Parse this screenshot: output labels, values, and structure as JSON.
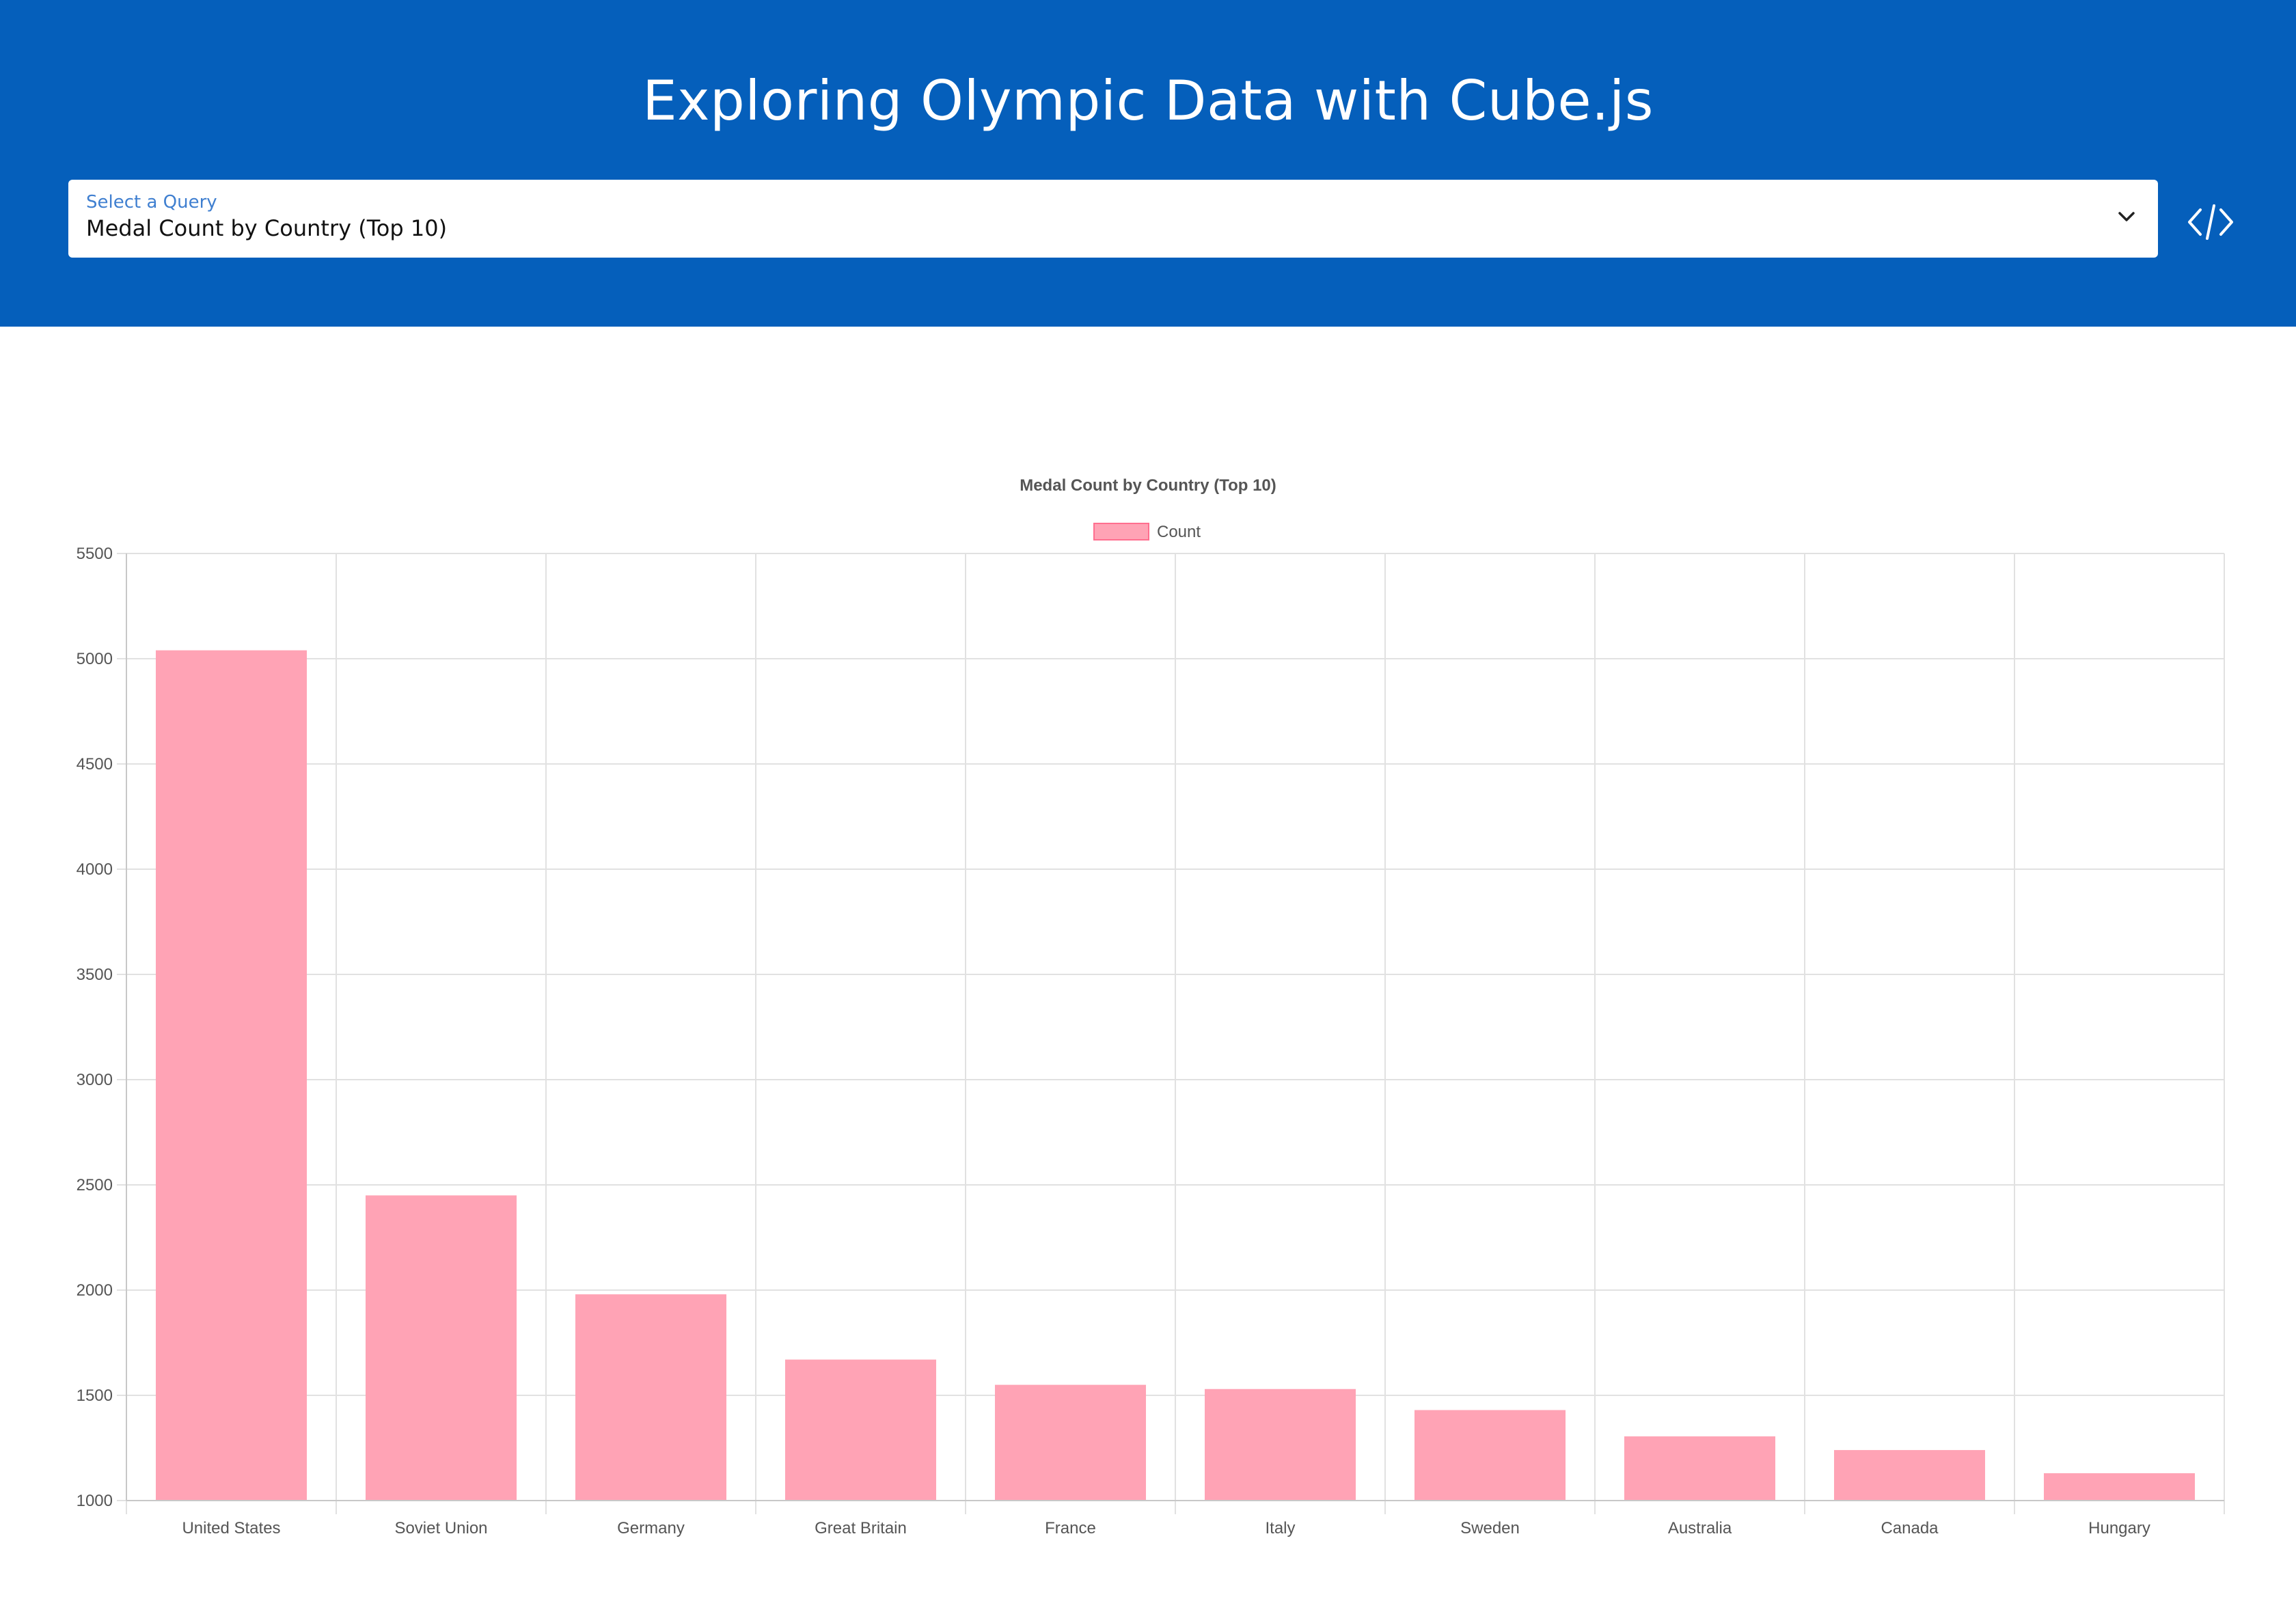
{
  "header": {
    "title": "Exploring Olympic Data with Cube.js",
    "select_label": "Select a Query",
    "select_value": "Medal Count by Country (Top 10)",
    "chevron_icon": "chevron-down-icon",
    "code_icon": "code-icon"
  },
  "colors": {
    "header_bg": "#055fbb",
    "bar_fill": "#ffa3b5",
    "bar_stroke": "#ff6f8f"
  },
  "chart_data": {
    "type": "bar",
    "title": "Medal Count by Country (Top 10)",
    "legend": {
      "position": "top",
      "entries": [
        "Count"
      ]
    },
    "categories": [
      "United States",
      "Soviet Union",
      "Germany",
      "Great Britain",
      "France",
      "Italy",
      "Sweden",
      "Australia",
      "Canada",
      "Hungary"
    ],
    "series": [
      {
        "name": "Count",
        "values": [
          5040,
          2450,
          1980,
          1670,
          1550,
          1530,
          1430,
          1305,
          1240,
          1130
        ]
      }
    ],
    "ylim": [
      1000,
      5500
    ],
    "yticks": [
      "1000",
      "1500",
      "2000",
      "2500",
      "3000",
      "3500",
      "4000",
      "4500",
      "5000",
      "5500"
    ],
    "grid": true
  }
}
